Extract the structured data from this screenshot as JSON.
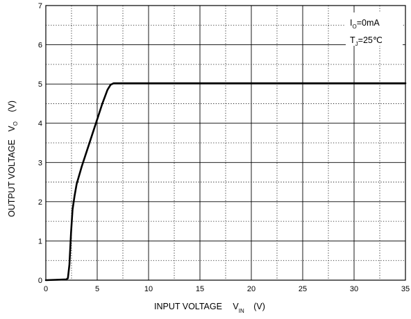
{
  "chart_data": {
    "type": "line",
    "title": "",
    "xlabel": "INPUT VOLTAGE",
    "xlabel_symbol": "V",
    "xlabel_subscript": "IN",
    "xlabel_unit": "(V)",
    "ylabel": "OUTPUT VOLTAGE",
    "ylabel_symbol": "V",
    "ylabel_subscript": "O",
    "ylabel_unit": "(V)",
    "xlim": [
      0,
      35
    ],
    "ylim": [
      0,
      7
    ],
    "x_ticks": [
      0,
      5,
      10,
      15,
      20,
      25,
      30,
      35
    ],
    "y_ticks": [
      0,
      1,
      2,
      3,
      4,
      5,
      6,
      7
    ],
    "grid": true,
    "grid_minor": "dotted half-step lines",
    "annotations": [
      {
        "prefix": "I",
        "subscript": "O",
        "text": "=0mA"
      },
      {
        "prefix": "T",
        "subscript": "J",
        "text": "=25℃"
      }
    ],
    "series": [
      {
        "color": "#000000",
        "x": [
          0,
          2.0,
          2.15,
          2.3,
          2.45,
          2.6,
          2.8,
          3.0,
          3.5,
          4.0,
          4.5,
          5.0,
          5.5,
          6.0,
          6.3,
          6.6,
          7.0,
          10,
          15,
          20,
          25,
          30,
          35
        ],
        "y": [
          0,
          0.02,
          0.05,
          0.4,
          1.2,
          1.8,
          2.15,
          2.45,
          2.9,
          3.3,
          3.7,
          4.1,
          4.5,
          4.85,
          4.98,
          5.02,
          5.02,
          5.02,
          5.02,
          5.02,
          5.02,
          5.02,
          5.02
        ]
      }
    ]
  }
}
